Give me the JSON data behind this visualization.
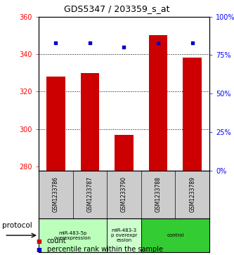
{
  "title": "GDS5347 / 203359_s_at",
  "samples": [
    "GSM1233786",
    "GSM1233787",
    "GSM1233790",
    "GSM1233788",
    "GSM1233789"
  ],
  "counts": [
    328,
    330,
    297,
    350,
    338
  ],
  "percentiles": [
    83,
    83,
    80,
    83,
    83
  ],
  "ylim_left": [
    278,
    360
  ],
  "ylim_right": [
    0,
    100
  ],
  "yticks_left": [
    280,
    300,
    320,
    340,
    360
  ],
  "yticks_right": [
    0,
    25,
    50,
    75,
    100
  ],
  "bar_color": "#cc0000",
  "dot_color": "#0000cc",
  "bg_color": "#ffffff",
  "groups": [
    {
      "label": "miR-483-5p\noverexpression",
      "start": 0,
      "end": 2,
      "color": "#bbffbb"
    },
    {
      "label": "miR-483-3\np overexpr\nession",
      "start": 2,
      "end": 3,
      "color": "#ccffcc"
    },
    {
      "label": "control",
      "start": 3,
      "end": 5,
      "color": "#33cc33"
    }
  ],
  "protocol_label": "protocol",
  "legend_count_label": "count",
  "legend_percentile_label": "percentile rank within the sample",
  "sample_area_color": "#cccccc",
  "title_fontsize": 9,
  "tick_fontsize": 7,
  "legend_fontsize": 7
}
